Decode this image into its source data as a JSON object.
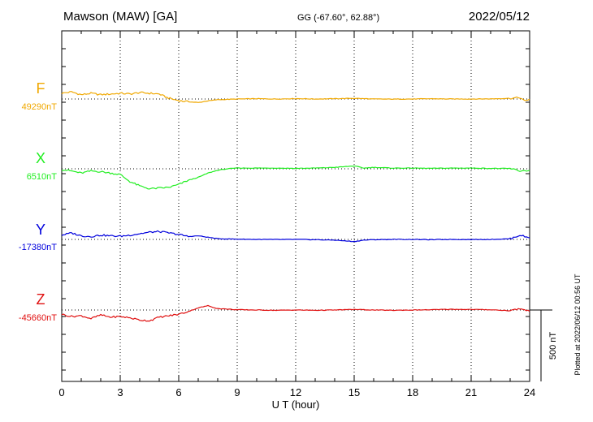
{
  "header": {
    "station": "Mawson (MAW)  [GA]",
    "coords": "GG (-67.60°,  62.88°)",
    "date": "2022/05/12"
  },
  "plotted_note": "Plotted at 2022/06/12 00:56 UT",
  "scale_bar_label": "500 nT",
  "chart_data": {
    "type": "line",
    "xlabel": "U T (hour)",
    "xlim": [
      0,
      24
    ],
    "xticks": [
      0,
      3,
      6,
      9,
      12,
      15,
      18,
      21,
      24
    ],
    "grid": true,
    "series": [
      {
        "name": "F",
        "baseline_label": "49290nT",
        "color": "#f0a800",
        "values": [
          [
            0,
            49330
          ],
          [
            0.5,
            49340
          ],
          [
            1,
            49320
          ],
          [
            1.5,
            49330
          ],
          [
            2,
            49320
          ],
          [
            2.5,
            49325
          ],
          [
            3,
            49330
          ],
          [
            3.5,
            49325
          ],
          [
            4,
            49335
          ],
          [
            4.5,
            49330
          ],
          [
            5,
            49325
          ],
          [
            5.4,
            49300
          ],
          [
            5.8,
            49285
          ],
          [
            6.2,
            49275
          ],
          [
            6.6,
            49270
          ],
          [
            7,
            49265
          ],
          [
            7.4,
            49275
          ],
          [
            8,
            49285
          ],
          [
            9,
            49290
          ],
          [
            10,
            49292
          ],
          [
            11,
            49290
          ],
          [
            12,
            49293
          ],
          [
            13,
            49290
          ],
          [
            14,
            49292
          ],
          [
            15,
            49295
          ],
          [
            16,
            49290
          ],
          [
            17,
            49289
          ],
          [
            18,
            49290
          ],
          [
            19,
            49292
          ],
          [
            20,
            49290
          ],
          [
            21,
            49290
          ],
          [
            22,
            49291
          ],
          [
            23,
            49295
          ],
          [
            23.5,
            49300
          ],
          [
            23.75,
            49275
          ],
          [
            24,
            49290
          ]
        ]
      },
      {
        "name": "X",
        "baseline_label": "6510nT",
        "color": "#22ee22",
        "values": [
          [
            0,
            6505
          ],
          [
            0.5,
            6495
          ],
          [
            1,
            6480
          ],
          [
            1.5,
            6495
          ],
          [
            2,
            6490
          ],
          [
            2.5,
            6480
          ],
          [
            3,
            6470
          ],
          [
            3.5,
            6420
          ],
          [
            4,
            6390
          ],
          [
            4.5,
            6370
          ],
          [
            5,
            6375
          ],
          [
            5.5,
            6380
          ],
          [
            6,
            6400
          ],
          [
            6.5,
            6430
          ],
          [
            7,
            6450
          ],
          [
            7.5,
            6480
          ],
          [
            8,
            6500
          ],
          [
            8.5,
            6510
          ],
          [
            9,
            6515
          ],
          [
            10,
            6515
          ],
          [
            11,
            6515
          ],
          [
            12,
            6513
          ],
          [
            13,
            6515
          ],
          [
            14,
            6520
          ],
          [
            15,
            6530
          ],
          [
            15.5,
            6515
          ],
          [
            16,
            6520
          ],
          [
            17,
            6515
          ],
          [
            18,
            6515
          ],
          [
            19,
            6513
          ],
          [
            20,
            6515
          ],
          [
            21,
            6515
          ],
          [
            22,
            6513
          ],
          [
            23,
            6512
          ],
          [
            23.5,
            6495
          ],
          [
            24,
            6500
          ]
        ]
      },
      {
        "name": "Y",
        "baseline_label": "-17380nT",
        "color": "#0000dd",
        "values": [
          [
            0,
            -17350
          ],
          [
            0.5,
            -17335
          ],
          [
            1,
            -17355
          ],
          [
            1.5,
            -17360
          ],
          [
            2,
            -17350
          ],
          [
            2.5,
            -17355
          ],
          [
            3,
            -17358
          ],
          [
            3.5,
            -17350
          ],
          [
            4,
            -17340
          ],
          [
            4.5,
            -17330
          ],
          [
            5,
            -17325
          ],
          [
            5.5,
            -17335
          ],
          [
            6,
            -17345
          ],
          [
            6.5,
            -17360
          ],
          [
            7,
            -17355
          ],
          [
            7.5,
            -17365
          ],
          [
            8,
            -17375
          ],
          [
            9,
            -17378
          ],
          [
            10,
            -17380
          ],
          [
            11,
            -17381
          ],
          [
            12,
            -17380
          ],
          [
            13,
            -17382
          ],
          [
            14,
            -17385
          ],
          [
            15,
            -17395
          ],
          [
            15.5,
            -17385
          ],
          [
            16,
            -17382
          ],
          [
            17,
            -17380
          ],
          [
            18,
            -17380
          ],
          [
            19,
            -17382
          ],
          [
            20,
            -17380
          ],
          [
            21,
            -17381
          ],
          [
            22,
            -17380
          ],
          [
            23,
            -17376
          ],
          [
            23.5,
            -17350
          ],
          [
            24,
            -17370
          ]
        ]
      },
      {
        "name": "Z",
        "baseline_label": "-45660nT",
        "color": "#e01010",
        "values": [
          [
            0,
            -45690
          ],
          [
            0.5,
            -45705
          ],
          [
            1,
            -45700
          ],
          [
            1.5,
            -45720
          ],
          [
            2,
            -45695
          ],
          [
            2.5,
            -45710
          ],
          [
            3,
            -45705
          ],
          [
            3.5,
            -45715
          ],
          [
            4,
            -45730
          ],
          [
            4.5,
            -45735
          ],
          [
            5,
            -45710
          ],
          [
            5.5,
            -45700
          ],
          [
            6,
            -45690
          ],
          [
            6.5,
            -45670
          ],
          [
            7,
            -45645
          ],
          [
            7.5,
            -45630
          ],
          [
            8,
            -45650
          ],
          [
            9,
            -45658
          ],
          [
            10,
            -45660
          ],
          [
            11,
            -45662
          ],
          [
            12,
            -45660
          ],
          [
            13,
            -45662
          ],
          [
            14,
            -45660
          ],
          [
            15,
            -45656
          ],
          [
            16,
            -45660
          ],
          [
            17,
            -45662
          ],
          [
            18,
            -45660
          ],
          [
            19,
            -45658
          ],
          [
            20,
            -45655
          ],
          [
            21,
            -45656
          ],
          [
            22,
            -45658
          ],
          [
            23,
            -45665
          ],
          [
            23.5,
            -45650
          ],
          [
            24,
            -45670
          ]
        ]
      }
    ]
  }
}
